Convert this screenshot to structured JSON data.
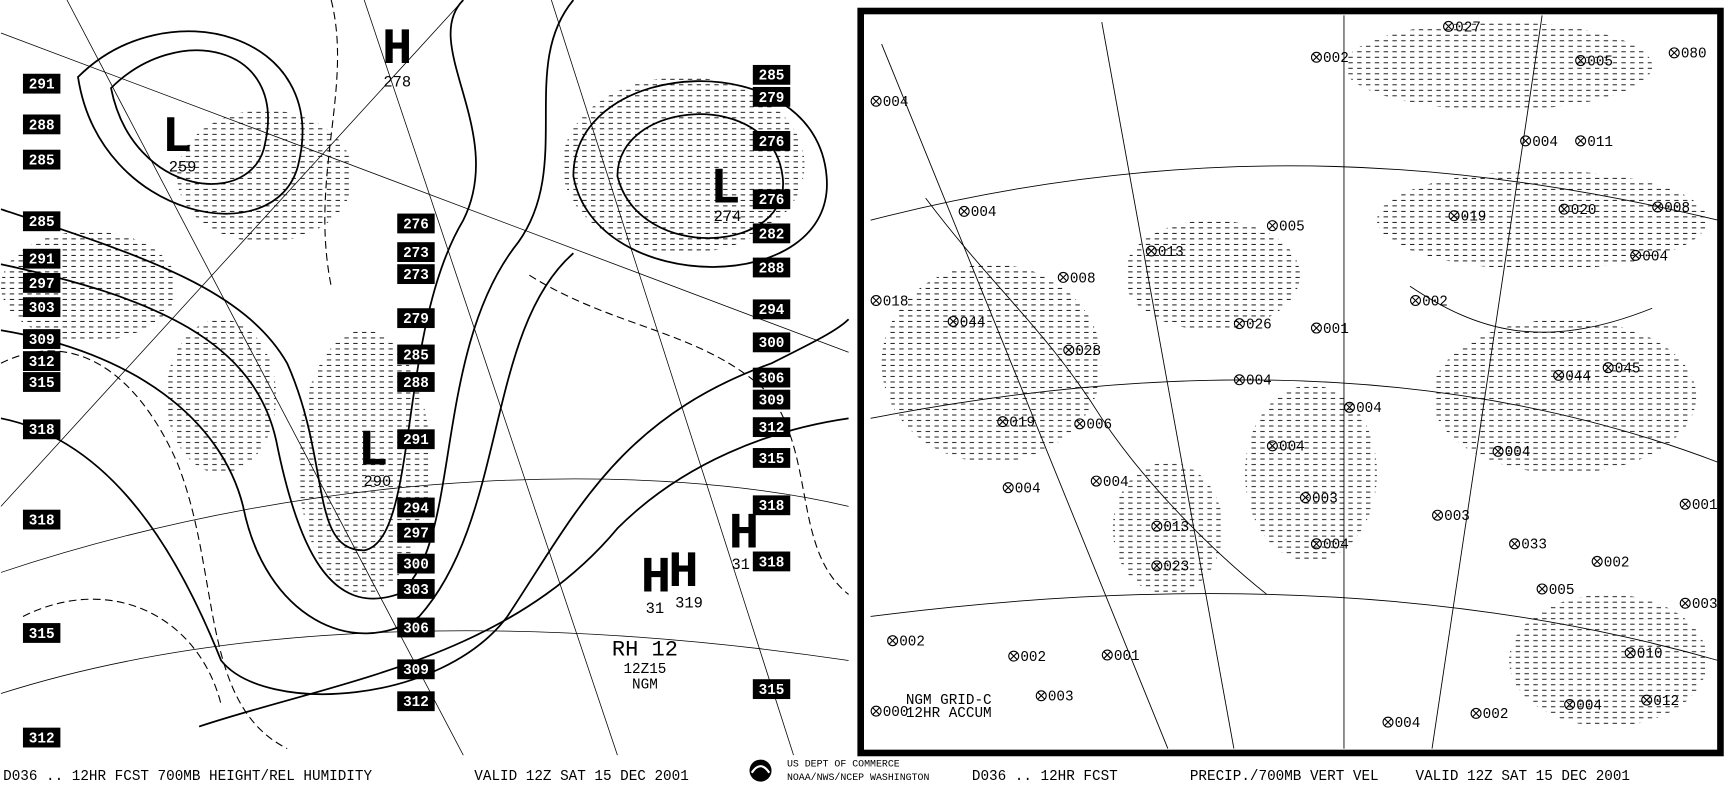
{
  "left_panel": {
    "height_labels_west": [
      291,
      288,
      285,
      285,
      291,
      297,
      303,
      309,
      312,
      315,
      318,
      318,
      315,
      312
    ],
    "height_labels_middle": [
      276,
      273,
      273,
      279,
      285,
      288,
      291,
      294,
      297,
      300,
      303,
      306,
      309,
      312
    ],
    "height_labels_east": [
      285,
      279,
      276,
      276,
      282,
      288,
      294,
      300,
      306,
      309,
      312,
      315,
      318,
      318,
      315
    ],
    "centers": [
      {
        "symbol": "H",
        "value": "278"
      },
      {
        "symbol": "L",
        "value": "259"
      },
      {
        "symbol": "L",
        "value": "274"
      },
      {
        "symbol": "L",
        "value": "290"
      },
      {
        "symbol": "H",
        "value": "31"
      },
      {
        "symbol": "H",
        "value": "319"
      },
      {
        "symbol": "H",
        "value": "31"
      }
    ],
    "product_label": [
      "RH 12",
      "12Z15",
      "NGM"
    ],
    "footer": [
      "D036 .. 12HR FCST 700MB HEIGHT/REL HUMIDITY",
      "VALID 12Z SAT 15 DEC 2001"
    ]
  },
  "center_logo": {
    "agency": [
      "US DEPT OF COMMERCE",
      "NOAA/NWS/NCEP WASHINGTON"
    ]
  },
  "right_panel": {
    "precip_values": [
      "002",
      "027",
      "005",
      "080",
      "004",
      "004",
      "011",
      "004",
      "019",
      "020",
      "008",
      "013",
      "008",
      "005",
      "004",
      "018",
      "044",
      "002",
      "026",
      "001",
      "028",
      "045",
      "044",
      "004",
      "019",
      "006",
      "004",
      "004",
      "004",
      "004",
      "004",
      "003",
      "003",
      "001",
      "013",
      "033",
      "004",
      "002",
      "023",
      "005",
      "003",
      "002",
      "002",
      "001",
      "003",
      "000",
      "004",
      "002",
      "004",
      "012",
      "010"
    ],
    "grid_label": [
      "NGM GRID-C",
      "12HR ACCUM"
    ],
    "footer": [
      "D036 .. 12HR FCST",
      "PRECIP./700MB VERT VEL",
      "VALID 12Z SAT 15 DEC 2001"
    ]
  }
}
